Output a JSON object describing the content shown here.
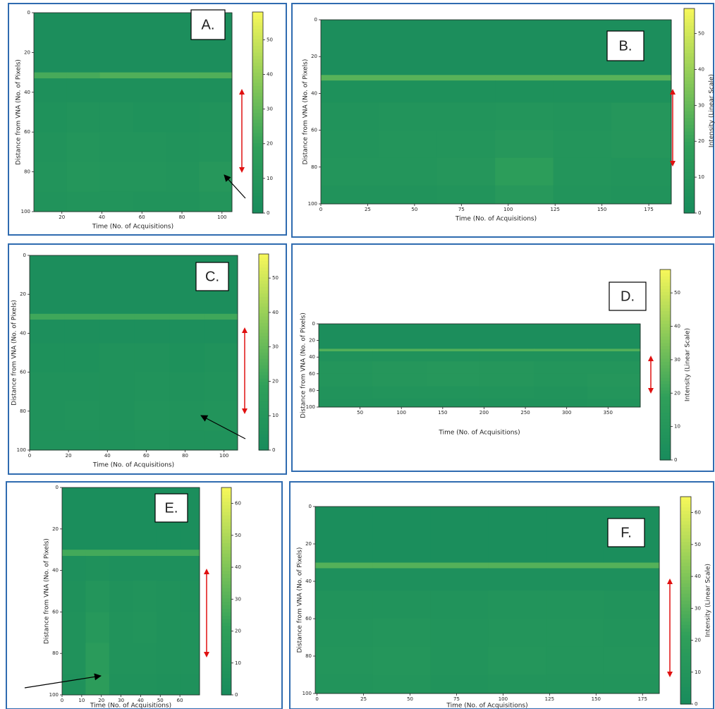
{
  "chart_data": [
    {
      "type": "heatmap",
      "label": "A.",
      "xlabel": "Time (No. of Acquisitions)",
      "ylabel": "Distance from VNA (No. of Pixels)",
      "xlim": [
        6,
        105
      ],
      "ylim": [
        0,
        100
      ],
      "y_inverted": true,
      "xticks": [
        20,
        40,
        60,
        80,
        100
      ],
      "yticks": [
        0,
        20,
        40,
        60,
        80,
        100
      ],
      "xbins": [
        6,
        22.5,
        39,
        55.5,
        72,
        88.5,
        105
      ],
      "ybins": [
        0,
        30,
        33,
        45,
        60,
        75,
        90,
        100
      ],
      "values": [
        [
          3,
          3,
          3,
          3,
          3,
          3
        ],
        [
          24,
          24,
          26,
          26,
          26,
          26
        ],
        [
          5,
          5,
          5,
          5,
          5,
          5
        ],
        [
          6,
          7,
          7,
          6,
          6,
          7
        ],
        [
          7,
          9,
          8,
          8,
          7,
          8
        ],
        [
          8,
          10,
          9,
          9,
          8,
          11
        ],
        [
          7,
          8,
          8,
          7,
          7,
          9
        ]
      ],
      "clim": [
        0,
        58
      ],
      "cticks": [
        0,
        10,
        20,
        30,
        40,
        50
      ],
      "colormap": [
        "#188b5c",
        "#30a05a",
        "#8ecb58",
        "#f7f75a"
      ]
    },
    {
      "type": "heatmap",
      "label": "B.",
      "xlabel": "Time (No. of Acquisitions)",
      "ylabel": "Distance from VNA (No. of Pixels)",
      "xlim": [
        0,
        187
      ],
      "ylim": [
        0,
        100
      ],
      "y_inverted": true,
      "xticks": [
        0,
        25,
        50,
        75,
        100,
        125,
        150,
        175
      ],
      "yticks": [
        0,
        20,
        40,
        60,
        80,
        100
      ],
      "xbins": [
        0,
        31,
        62,
        93,
        124,
        155,
        187
      ],
      "ybins": [
        0,
        30,
        33,
        45,
        60,
        75,
        90,
        100
      ],
      "values": [
        [
          3,
          3,
          3,
          3,
          3,
          3
        ],
        [
          27,
          27,
          27,
          27,
          27,
          27
        ],
        [
          5,
          5,
          5,
          5,
          5,
          5
        ],
        [
          7,
          8,
          8,
          9,
          8,
          10
        ],
        [
          8,
          9,
          9,
          11,
          9,
          10
        ],
        [
          9,
          9,
          10,
          16,
          9,
          8
        ],
        [
          7,
          7,
          8,
          12,
          8,
          7
        ]
      ],
      "clim": [
        0,
        57
      ],
      "cticks": [
        0,
        10,
        20,
        30,
        40,
        50
      ],
      "colorbar_label": "Intensity (Linear Scale)",
      "colormap": [
        "#188b5c",
        "#30a05a",
        "#8ecb58",
        "#f7f75a"
      ]
    },
    {
      "type": "heatmap",
      "label": "C.",
      "xlabel": "Time (No. of Acquisitions)",
      "ylabel": "Distance from VNA (No. of Pixels)",
      "xlim": [
        0,
        107
      ],
      "ylim": [
        0,
        100
      ],
      "y_inverted": true,
      "xticks": [
        0,
        20,
        40,
        60,
        80,
        100
      ],
      "yticks": [
        0,
        20,
        40,
        60,
        80,
        100
      ],
      "xbins": [
        0,
        18,
        36,
        54,
        72,
        90,
        107
      ],
      "ybins": [
        0,
        30,
        33,
        45,
        60,
        75,
        90,
        100
      ],
      "values": [
        [
          3,
          3,
          3,
          3,
          3,
          3
        ],
        [
          22,
          22,
          22,
          22,
          22,
          22
        ],
        [
          4,
          4,
          4,
          4,
          4,
          4
        ],
        [
          5,
          5,
          6,
          6,
          5,
          6
        ],
        [
          6,
          6,
          6,
          7,
          6,
          7
        ],
        [
          6,
          7,
          6,
          8,
          7,
          8
        ],
        [
          6,
          6,
          6,
          7,
          6,
          6
        ]
      ],
      "clim": [
        0,
        57
      ],
      "cticks": [
        0,
        10,
        20,
        30,
        40,
        50
      ],
      "colormap": [
        "#188b5c",
        "#30a05a",
        "#8ecb58",
        "#f7f75a"
      ]
    },
    {
      "type": "heatmap",
      "label": "D.",
      "xlabel": "Time (No. of Acquisitions)",
      "ylabel": "Distance from VNA (No. of Pixels)",
      "xlim": [
        0,
        389
      ],
      "ylim": [
        0,
        100
      ],
      "y_inverted": true,
      "xticks": [
        50,
        100,
        150,
        200,
        250,
        300,
        350
      ],
      "yticks": [
        0,
        20,
        40,
        60,
        80,
        100
      ],
      "xbins": [
        0,
        65,
        130,
        195,
        260,
        325,
        389
      ],
      "ybins": [
        0,
        30,
        33,
        45,
        60,
        75,
        90,
        100
      ],
      "values": [
        [
          3,
          3,
          3,
          3,
          3,
          3
        ],
        [
          26,
          26,
          26,
          26,
          26,
          26
        ],
        [
          6,
          6,
          6,
          6,
          6,
          6
        ],
        [
          9,
          10,
          11,
          10,
          9,
          9
        ],
        [
          9,
          10,
          11,
          10,
          9,
          10
        ],
        [
          7,
          8,
          8,
          8,
          7,
          9
        ],
        [
          6,
          6,
          6,
          6,
          6,
          7
        ]
      ],
      "clim": [
        0,
        57
      ],
      "cticks": [
        0,
        10,
        20,
        30,
        40,
        50
      ],
      "colorbar_label": "Intensity (Linear Scale)",
      "colormap": [
        "#188b5c",
        "#30a05a",
        "#8ecb58",
        "#f7f75a"
      ]
    },
    {
      "type": "heatmap",
      "label": "E.",
      "xlabel": "Time (No. of Acquisitions)",
      "ylabel": "Distance from VNA (No. of Pixels)",
      "xlim": [
        0,
        70
      ],
      "ylim": [
        0,
        100
      ],
      "y_inverted": true,
      "xticks": [
        0,
        10,
        20,
        30,
        40,
        50,
        60
      ],
      "yticks": [
        0,
        20,
        40,
        60,
        80,
        100
      ],
      "xbins": [
        0,
        12,
        24,
        36,
        48,
        60,
        70
      ],
      "ybins": [
        0,
        30,
        33,
        45,
        60,
        75,
        90,
        100
      ],
      "values": [
        [
          3,
          3,
          3,
          3,
          3,
          3
        ],
        [
          26,
          26,
          26,
          26,
          26,
          26
        ],
        [
          5,
          6,
          5,
          5,
          5,
          5
        ],
        [
          6,
          10,
          7,
          8,
          7,
          6
        ],
        [
          7,
          13,
          8,
          9,
          7,
          7
        ],
        [
          7,
          16,
          8,
          8,
          7,
          7
        ],
        [
          6,
          18,
          7,
          7,
          6,
          6
        ]
      ],
      "clim": [
        0,
        65
      ],
      "cticks": [
        0,
        10,
        20,
        30,
        40,
        50,
        60
      ],
      "colormap": [
        "#188b5c",
        "#30a05a",
        "#8ecb58",
        "#f7f75a"
      ]
    },
    {
      "type": "heatmap",
      "label": "F.",
      "xlabel": "Time (No. of Acquisitions)",
      "ylabel": "Distance from VNA (No. of Pixels)",
      "xlim": [
        -1,
        184
      ],
      "ylim": [
        0,
        100
      ],
      "y_inverted": true,
      "xticks": [
        0,
        25,
        50,
        75,
        100,
        125,
        150,
        175
      ],
      "yticks": [
        0,
        20,
        40,
        60,
        80,
        100
      ],
      "xbins": [
        -1,
        30,
        61,
        92,
        123,
        154,
        184
      ],
      "ybins": [
        0,
        30,
        33,
        45,
        60,
        75,
        90,
        100
      ],
      "values": [
        [
          3,
          3,
          3,
          3,
          3,
          3
        ],
        [
          30,
          30,
          30,
          30,
          30,
          30
        ],
        [
          5,
          5,
          5,
          5,
          5,
          5
        ],
        [
          8,
          8,
          8,
          9,
          9,
          8
        ],
        [
          9,
          10,
          9,
          10,
          10,
          9
        ],
        [
          10,
          11,
          9,
          11,
          10,
          10
        ],
        [
          9,
          10,
          8,
          9,
          9,
          9
        ]
      ],
      "clim": [
        0,
        65
      ],
      "cticks": [
        0,
        10,
        20,
        30,
        40,
        50,
        60
      ],
      "colorbar_label": "Intensity (Linear Scale)",
      "colormap": [
        "#188b5c",
        "#30a05a",
        "#8ecb58",
        "#f7f75a"
      ]
    }
  ]
}
